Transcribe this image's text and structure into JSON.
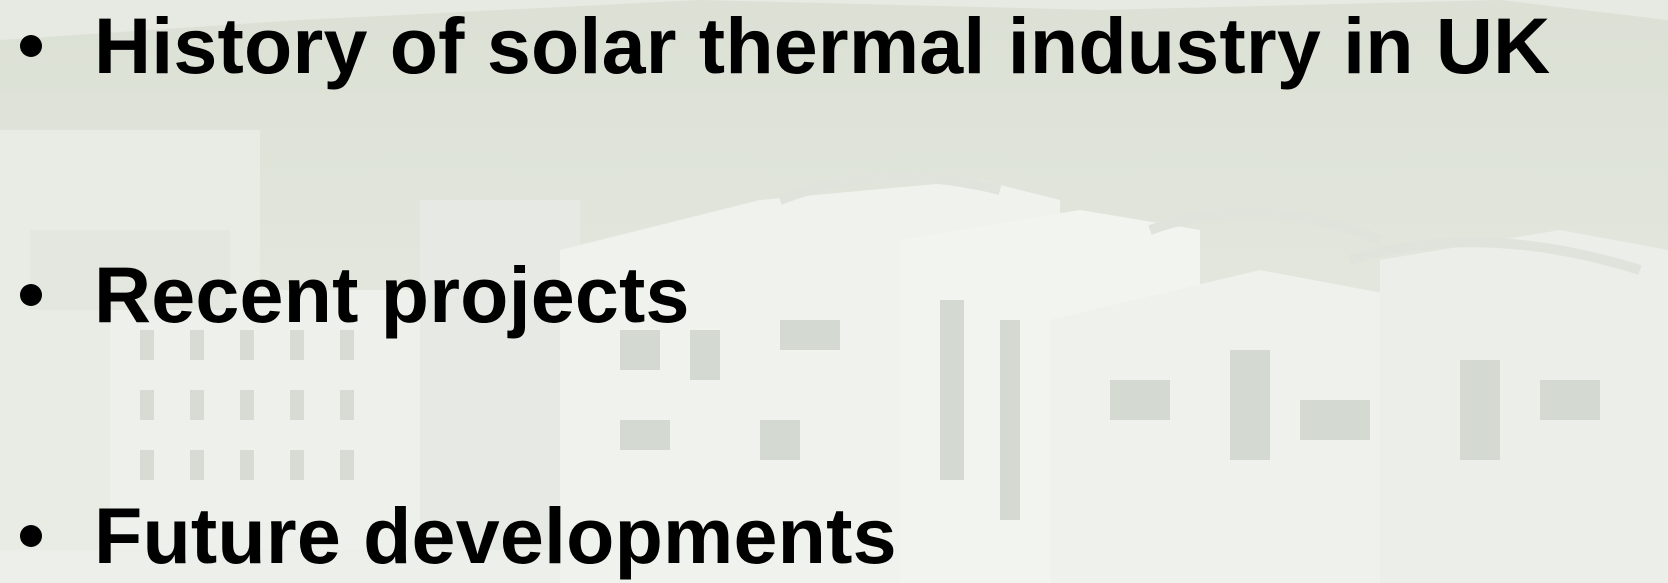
{
  "slide": {
    "bullets": [
      {
        "text": "History of solar thermal industry in UK"
      },
      {
        "text": "Recent projects"
      },
      {
        "text": "Future developments"
      }
    ]
  },
  "colors": {
    "text": "#000000",
    "background_wash": "#e6e8e2",
    "building_white": "#f4f5f2",
    "hill_green": "#c9d1bf",
    "window_shadow": "#b8bdb4"
  },
  "icons": {
    "bullet": "bullet-dot-icon"
  }
}
